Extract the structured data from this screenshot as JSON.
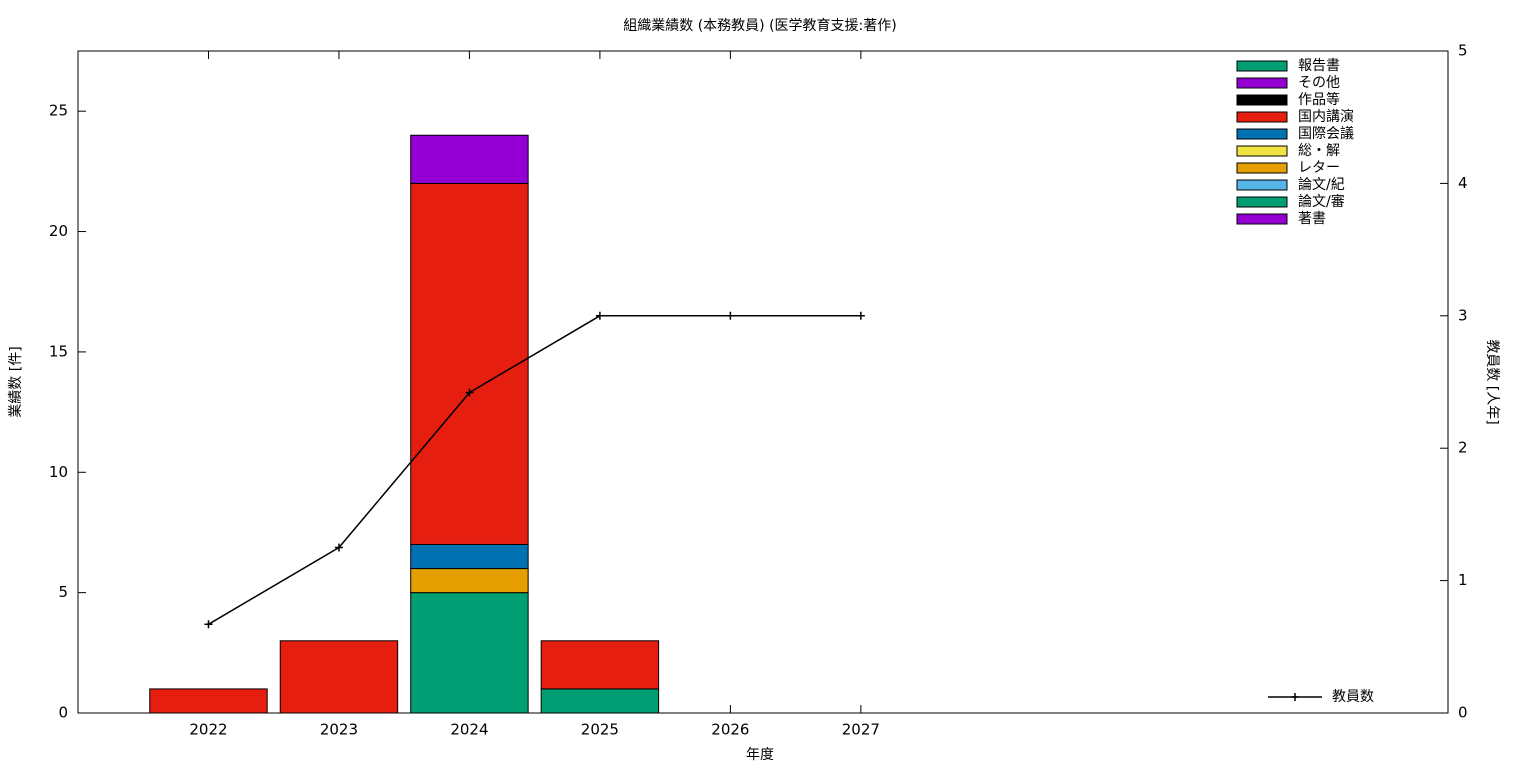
{
  "chart_data": {
    "type": "bar",
    "stacked": true,
    "title": "組織業績数 (本務教員) (医学教育支援:著作)",
    "xlabel": "年度",
    "ylabel": "業績数 [件]",
    "y2label": "教員数 [人年]",
    "x": [
      2022,
      2023,
      2024,
      2025,
      2026,
      2027
    ],
    "xlim": [
      2021,
      2031.5
    ],
    "xticks": [
      2022,
      2023,
      2024,
      2025,
      2026,
      2027
    ],
    "ylim": [
      0,
      27.5
    ],
    "yticks": [
      0,
      5,
      10,
      15,
      20,
      25
    ],
    "y2lim": [
      0,
      5
    ],
    "y2ticks": [
      0,
      1,
      2,
      3,
      4,
      5
    ],
    "legend": "top-right",
    "series": [
      {
        "name": "著書",
        "color": "#9400d3",
        "values": [
          0,
          0,
          0,
          0,
          0,
          0
        ]
      },
      {
        "name": "論文/審",
        "color": "#009e73",
        "values": [
          0,
          0,
          5,
          1,
          0,
          0
        ]
      },
      {
        "name": "論文/紀",
        "color": "#56b4e9",
        "values": [
          0,
          0,
          0,
          0,
          0,
          0
        ]
      },
      {
        "name": "レター",
        "color": "#e69f00",
        "values": [
          0,
          0,
          1,
          0,
          0,
          0
        ]
      },
      {
        "name": "総・解",
        "color": "#f0e442",
        "values": [
          0,
          0,
          0,
          0,
          0,
          0
        ]
      },
      {
        "name": "国際会議",
        "color": "#0072b2",
        "values": [
          0,
          0,
          1,
          0,
          0,
          0
        ]
      },
      {
        "name": "国内講演",
        "color": "#e51e10",
        "values": [
          1,
          3,
          15,
          2,
          0,
          0
        ]
      },
      {
        "name": "作品等",
        "color": "#000000",
        "values": [
          0,
          0,
          0,
          0,
          0,
          0
        ]
      },
      {
        "name": "その他",
        "color": "#9400d3",
        "values": [
          0,
          0,
          2,
          0,
          0,
          0
        ]
      },
      {
        "name": "報告書",
        "color": "#009e73",
        "values": [
          0,
          0,
          0,
          0,
          0,
          0
        ]
      }
    ],
    "line": {
      "name": "教員数",
      "color": "#000000",
      "axis": "y2",
      "values": [
        0.67,
        1.25,
        2.42,
        3,
        3,
        3
      ]
    }
  }
}
